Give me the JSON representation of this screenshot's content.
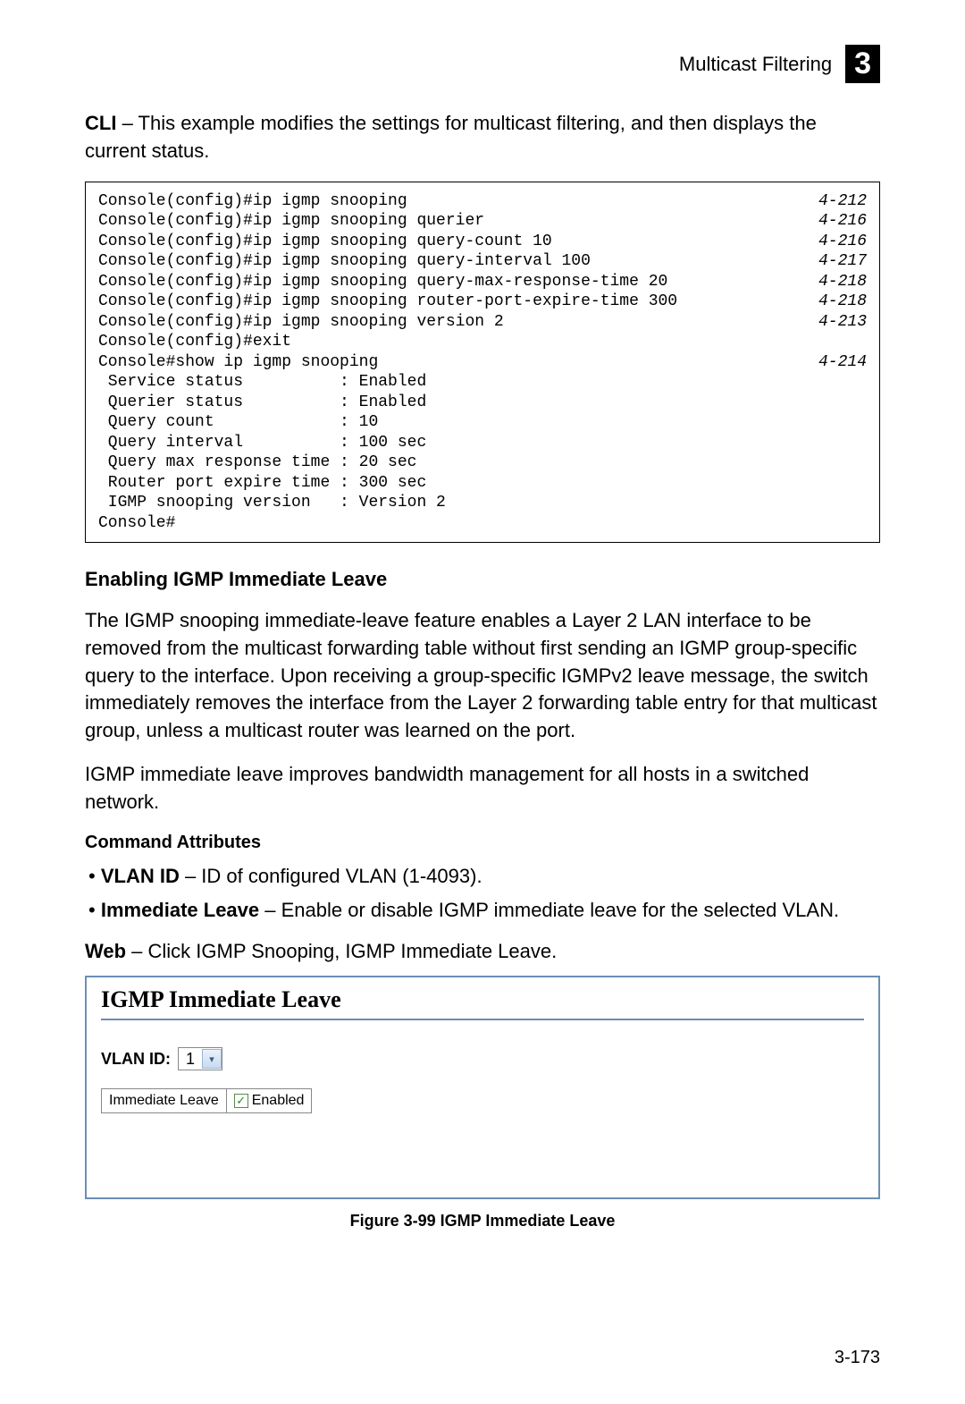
{
  "header": {
    "title": "Multicast Filtering",
    "chapter": "3"
  },
  "intro": {
    "bold": "CLI",
    "rest": " – This example modifies the settings for multicast filtering, and then displays the current status."
  },
  "console": {
    "rows": [
      {
        "cmd": "Console(config)#ip igmp snooping",
        "ref": "4-212"
      },
      {
        "cmd": "Console(config)#ip igmp snooping querier",
        "ref": "4-216"
      },
      {
        "cmd": "Console(config)#ip igmp snooping query-count 10",
        "ref": "4-216"
      },
      {
        "cmd": "Console(config)#ip igmp snooping query-interval 100",
        "ref": "4-217"
      },
      {
        "cmd": "Console(config)#ip igmp snooping query-max-response-time 20",
        "ref": "4-218"
      },
      {
        "cmd": "Console(config)#ip igmp snooping router-port-expire-time 300",
        "ref": "4-218"
      },
      {
        "cmd": "Console(config)#ip igmp snooping version 2",
        "ref": "4-213"
      },
      {
        "cmd": "Console(config)#exit",
        "ref": ""
      },
      {
        "cmd": "Console#show ip igmp snooping",
        "ref": "4-214"
      },
      {
        "cmd": " Service status          : Enabled",
        "ref": ""
      },
      {
        "cmd": " Querier status          : Enabled",
        "ref": ""
      },
      {
        "cmd": " Query count             : 10",
        "ref": ""
      },
      {
        "cmd": " Query interval          : 100 sec",
        "ref": ""
      },
      {
        "cmd": " Query max response time : 20 sec",
        "ref": ""
      },
      {
        "cmd": " Router port expire time : 300 sec",
        "ref": ""
      },
      {
        "cmd": " IGMP snooping version   : Version 2",
        "ref": ""
      },
      {
        "cmd": "Console#",
        "ref": ""
      }
    ]
  },
  "section": {
    "heading": "Enabling IGMP Immediate Leave",
    "para1": "The IGMP snooping immediate-leave feature enables a Layer 2 LAN interface to be removed from the multicast forwarding table without first sending an IGMP group-specific query to the interface. Upon receiving a group-specific IGMPv2 leave message, the switch immediately removes the interface from the Layer 2 forwarding table entry for that multicast group, unless a multicast router was learned on the port.",
    "para2": "IGMP immediate leave improves bandwidth management for all hosts in a switched network.",
    "attrs_heading": "Command Attributes",
    "bullets": [
      {
        "b": "VLAN ID",
        "rest": " – ID of configured VLAN (1-4093)."
      },
      {
        "b": "Immediate Leave",
        "rest": " – Enable or disable IGMP immediate leave for the selected VLAN."
      }
    ],
    "web": {
      "b": "Web",
      "rest": " – Click IGMP Snooping, IGMP Immediate Leave."
    }
  },
  "panel": {
    "title": "IGMP Immediate Leave",
    "vlan_label": "VLAN ID:",
    "vlan_value": "1",
    "row_label": "Immediate Leave",
    "enabled_label": "Enabled",
    "checked": true
  },
  "caption": "Figure 3-99  IGMP Immediate Leave",
  "pagenum": "3-173",
  "colors": {
    "panel_border": "#6a8fb5",
    "text": "#000000",
    "bg": "#ffffff"
  }
}
